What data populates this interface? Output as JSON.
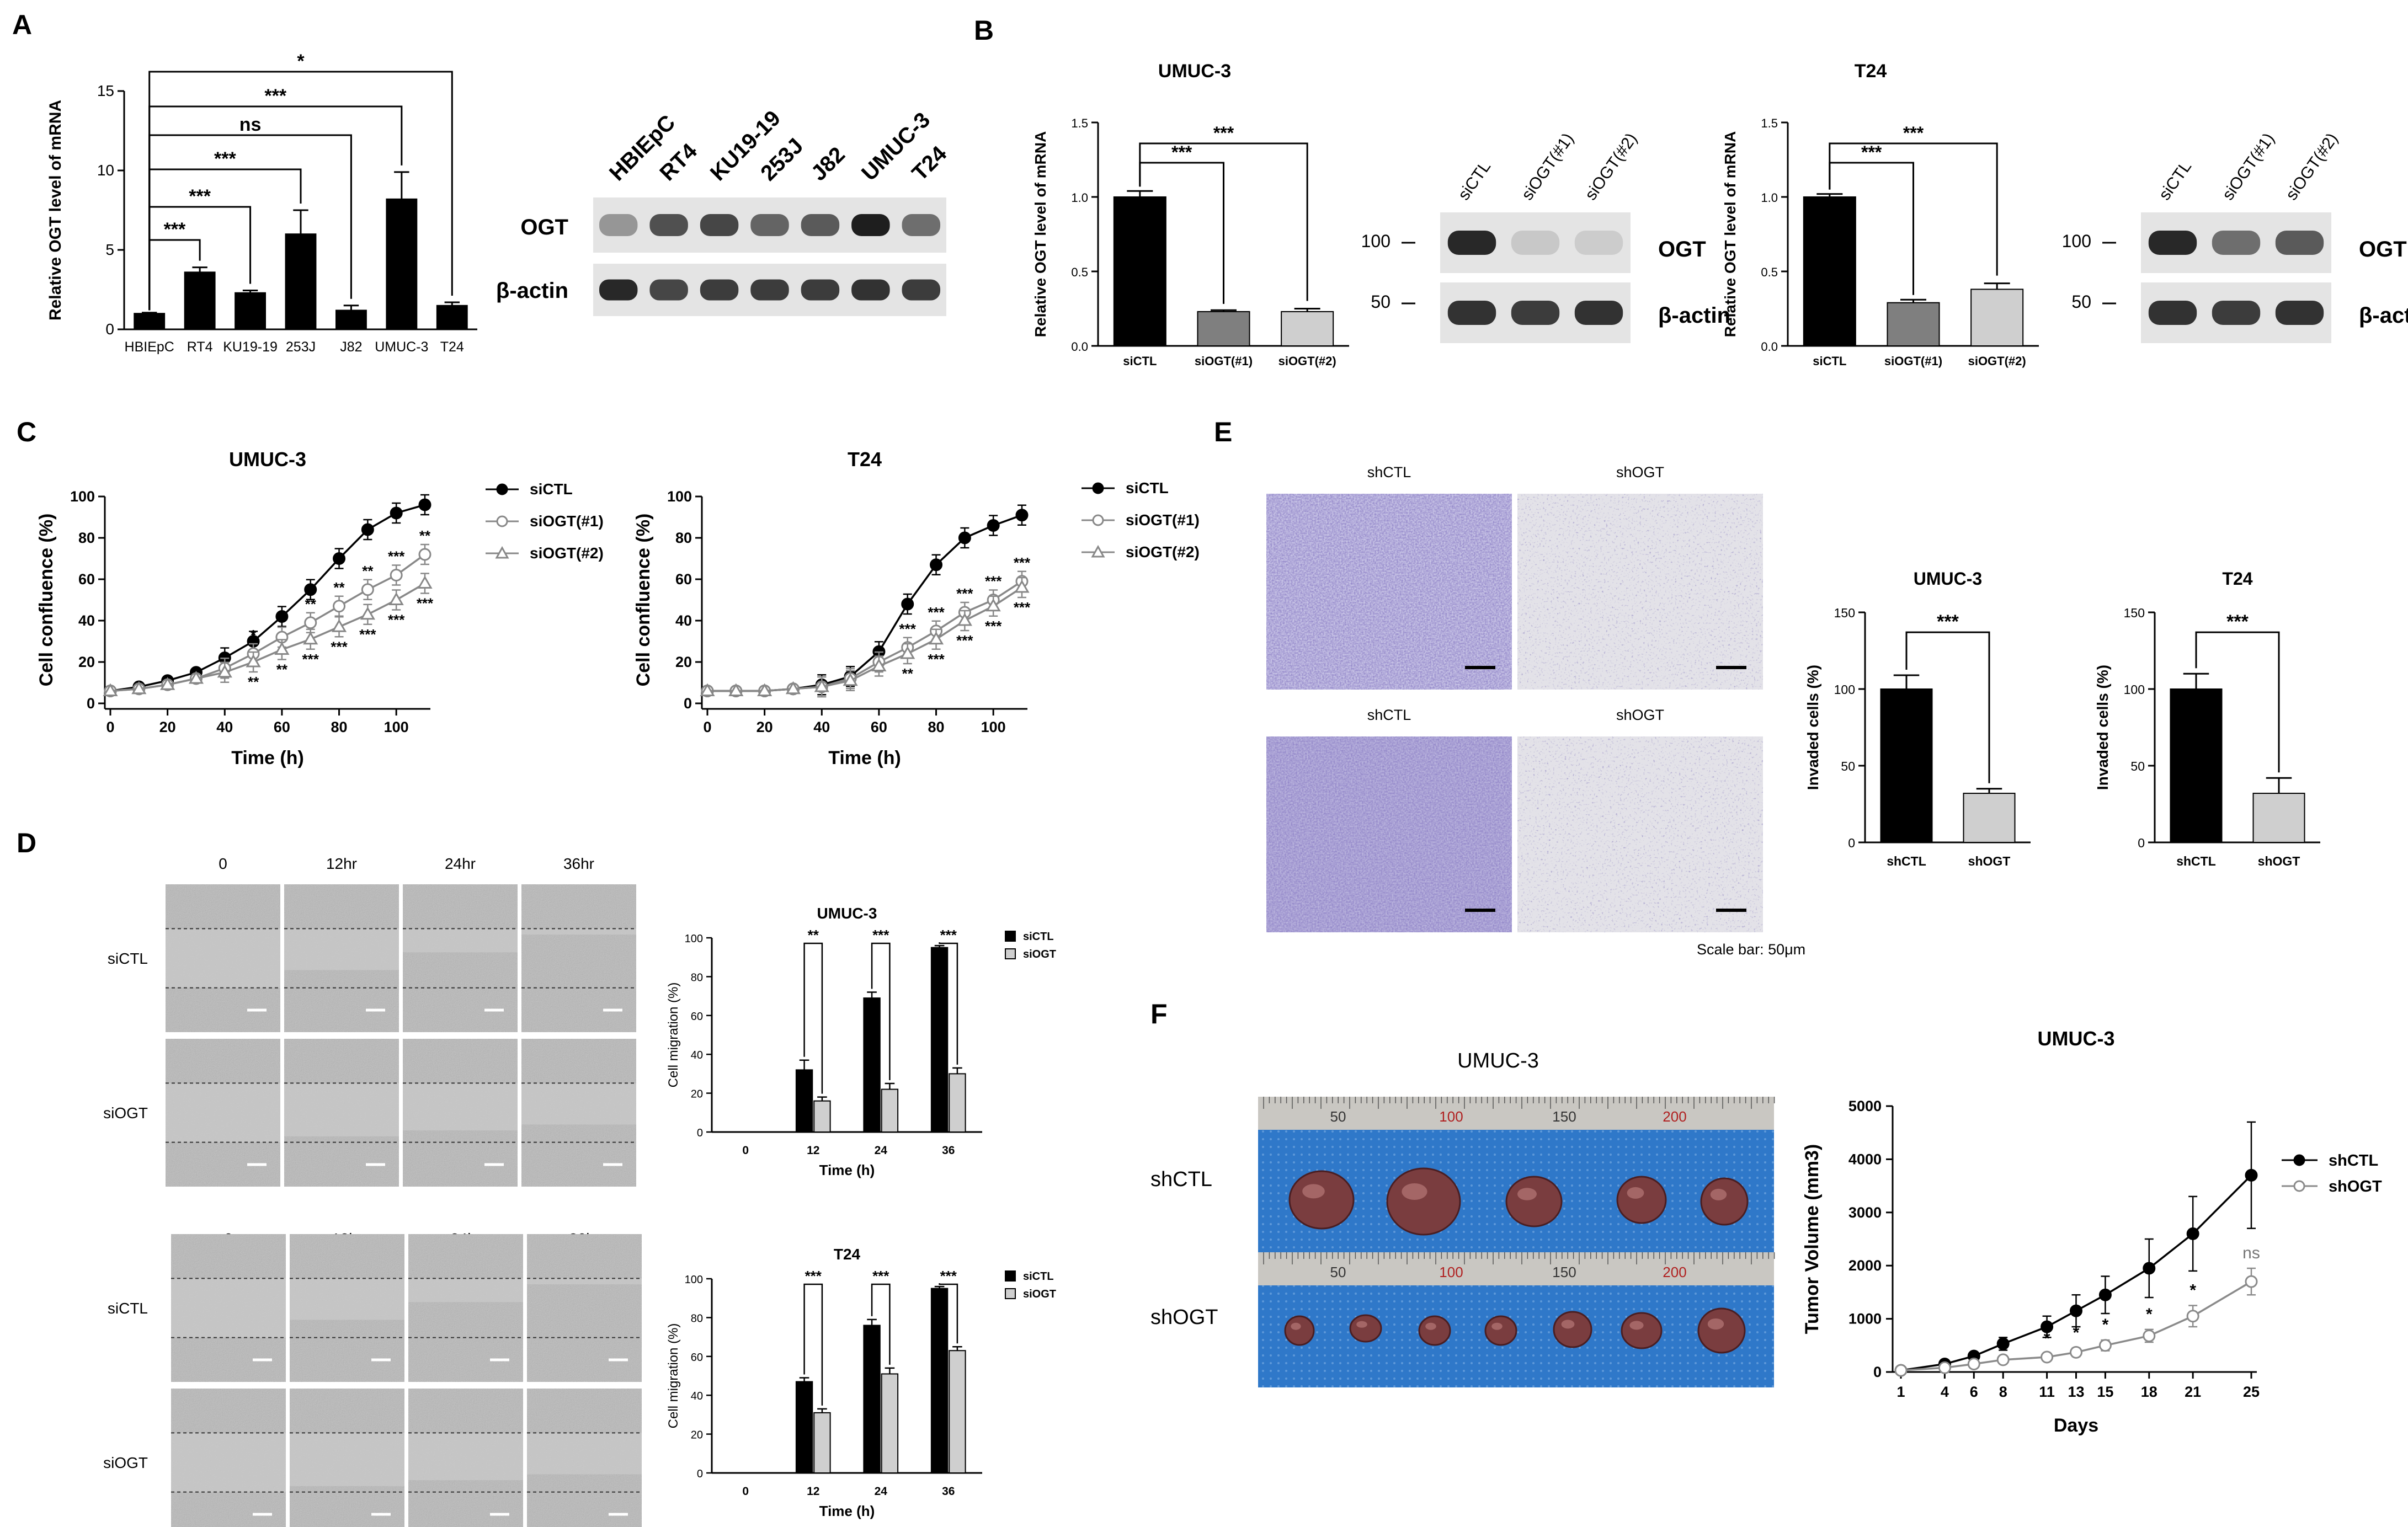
{
  "panel_letters": [
    "A",
    "B",
    "C",
    "D",
    "E",
    "F"
  ],
  "colors": {
    "black": "#000000",
    "gray": "#7f7f7f",
    "light": "#cfcfcf",
    "blot": "#1e1e1e",
    "membrane": "#dedede",
    "blue_mat": "#2f78c9"
  },
  "panelA": {
    "chart_data": {
      "type": "bar",
      "categories": [
        "HBIEpC",
        "RT4",
        "KU19-19",
        "253J",
        "J82",
        "UMUC-3",
        "T24"
      ],
      "values": [
        1.0,
        3.6,
        2.3,
        6.0,
        1.2,
        8.2,
        1.5
      ],
      "errors": [
        0.05,
        0.3,
        0.15,
        1.5,
        0.3,
        1.7,
        0.2
      ],
      "ylabel": "Relative OGT level of mRNA",
      "ylim": [
        0,
        15
      ],
      "yticks": [
        "0",
        "5",
        "10",
        "15"
      ],
      "significance": [
        "***",
        "***",
        "***",
        "ns",
        "***",
        "*"
      ]
    },
    "blot": {
      "lanes": [
        "HBIEpC",
        "RT4",
        "KU19-19",
        "253J",
        "J82",
        "UMUC-3",
        "T24"
      ],
      "rows": [
        "OGT",
        "β-actin"
      ],
      "ogt_intensity": [
        0.35,
        0.7,
        0.75,
        0.6,
        0.65,
        0.95,
        0.55
      ],
      "actin_intensity": [
        0.9,
        0.75,
        0.8,
        0.8,
        0.8,
        0.85,
        0.8
      ]
    }
  },
  "panelB": {
    "umuc": {
      "title": "UMUC-3",
      "chart_data": {
        "type": "bar",
        "categories": [
          "siCTL",
          "siOGT(#1)",
          "siOGT(#2)"
        ],
        "values": [
          1.0,
          0.23,
          0.23
        ],
        "errors": [
          0.04,
          0.01,
          0.02
        ],
        "ylabel": "Relative OGT level of mRNA",
        "ylim": [
          0,
          1.5
        ],
        "yticks": [
          "0.0",
          "0.5",
          "1.0",
          "1.5"
        ],
        "significance": [
          "***",
          "***"
        ]
      },
      "blot": {
        "lanes": [
          "siCTL",
          "siOGT(#1)",
          "siOGT(#2)"
        ],
        "rows": [
          "OGT",
          "β-actin"
        ],
        "markers": [
          "100",
          "50"
        ],
        "ogt_intensity": [
          0.9,
          0.1,
          0.08
        ],
        "actin_intensity": [
          0.85,
          0.8,
          0.85
        ]
      }
    },
    "t24": {
      "title": "T24",
      "chart_data": {
        "type": "bar",
        "categories": [
          "siCTL",
          "siOGT(#1)",
          "siOGT(#2)"
        ],
        "values": [
          1.0,
          0.29,
          0.38
        ],
        "errors": [
          0.02,
          0.02,
          0.04
        ],
        "ylabel": "Relative OGT level of mRNA",
        "ylim": [
          0,
          1.5
        ],
        "yticks": [
          "0.0",
          "0.5",
          "1.0",
          "1.5"
        ],
        "significance": [
          "***",
          "***"
        ]
      },
      "blot": {
        "lanes": [
          "siCTL",
          "siOGT(#1)",
          "siOGT(#2)"
        ],
        "rows": [
          "OGT",
          "β-actin"
        ],
        "markers": [
          "100",
          "50"
        ],
        "ogt_intensity": [
          0.9,
          0.55,
          0.65
        ],
        "actin_intensity": [
          0.85,
          0.8,
          0.85
        ]
      }
    }
  },
  "panelC": {
    "legend": [
      "siCTL",
      "siOGT(#1)",
      "siOGT(#2)"
    ],
    "umuc": {
      "chart_data": {
        "type": "line",
        "title": "UMUC-3",
        "xlabel": "Time (h)",
        "ylabel": "Cell confluence (%)",
        "xlim": [
          0,
          110
        ],
        "ylim": [
          0,
          100
        ],
        "xticks": [
          "0",
          "20",
          "40",
          "60",
          "80",
          "100"
        ],
        "yticks": [
          "0",
          "20",
          "40",
          "60",
          "80",
          "100"
        ],
        "x": [
          0,
          10,
          20,
          30,
          40,
          50,
          60,
          70,
          80,
          90,
          100,
          110
        ],
        "series": [
          {
            "name": "siCTL",
            "values": [
              6,
              8,
              11,
              15,
              22,
              30,
              42,
              55,
              70,
              84,
              92,
              96
            ]
          },
          {
            "name": "siOGT(#1)",
            "values": [
              6,
              7,
              9,
              12,
              17,
              24,
              32,
              39,
              47,
              55,
              62,
              72
            ]
          },
          {
            "name": "siOGT(#2)",
            "values": [
              6,
              7,
              9,
              12,
              15,
              20,
              26,
              31,
              37,
              43,
              50,
              58
            ]
          }
        ],
        "annotations_upper": [
          {
            "x": 50,
            "label": "*"
          },
          {
            "x": 60,
            "label": "**"
          },
          {
            "x": 70,
            "label": "**"
          },
          {
            "x": 80,
            "label": "**"
          },
          {
            "x": 90,
            "label": "**"
          },
          {
            "x": 100,
            "label": "***"
          },
          {
            "x": 110,
            "label": "**"
          }
        ],
        "annotations_lower": [
          {
            "x": 50,
            "label": "**"
          },
          {
            "x": 60,
            "label": "**"
          },
          {
            "x": 70,
            "label": "***"
          },
          {
            "x": 80,
            "label": "***"
          },
          {
            "x": 90,
            "label": "***"
          },
          {
            "x": 100,
            "label": "***"
          },
          {
            "x": 110,
            "label": "***"
          }
        ]
      }
    },
    "t24": {
      "chart_data": {
        "type": "line",
        "title": "T24",
        "xlabel": "Time (h)",
        "ylabel": "Cell confluence (%)",
        "xlim": [
          0,
          110
        ],
        "ylim": [
          0,
          100
        ],
        "xticks": [
          "0",
          "20",
          "40",
          "60",
          "80",
          "100"
        ],
        "yticks": [
          "0",
          "20",
          "40",
          "60",
          "80",
          "100"
        ],
        "x": [
          0,
          10,
          20,
          30,
          40,
          50,
          60,
          70,
          80,
          90,
          100,
          110
        ],
        "series": [
          {
            "name": "siCTL",
            "values": [
              6,
              6,
              6,
              7,
              9,
              13,
              25,
              48,
              67,
              80,
              86,
              91
            ]
          },
          {
            "name": "siOGT(#1)",
            "values": [
              6,
              6,
              6,
              7,
              8,
              12,
              20,
              27,
              35,
              44,
              50,
              59
            ]
          },
          {
            "name": "siOGT(#2)",
            "values": [
              6,
              6,
              6,
              7,
              8,
              11,
              18,
              24,
              31,
              40,
              47,
              56
            ]
          }
        ],
        "annotations_upper": [
          {
            "x": 70,
            "label": "***"
          },
          {
            "x": 80,
            "label": "***"
          },
          {
            "x": 90,
            "label": "***"
          },
          {
            "x": 100,
            "label": "***"
          },
          {
            "x": 110,
            "label": "***"
          }
        ],
        "annotations_lower": [
          {
            "x": 70,
            "label": "**"
          },
          {
            "x": 80,
            "label": "***"
          },
          {
            "x": 90,
            "label": "***"
          },
          {
            "x": 100,
            "label": "***"
          },
          {
            "x": 110,
            "label": "***"
          }
        ]
      }
    }
  },
  "panelD": {
    "times": [
      "0",
      "12hr",
      "24hr",
      "36hr"
    ],
    "rows": [
      "siCTL",
      "siOGT"
    ],
    "legend": [
      "siCTL",
      "siOGT"
    ],
    "umuc": {
      "chart_data": {
        "type": "bar",
        "title": "UMUC-3",
        "xlabel": "Time (h)",
        "ylabel": "Cell migration (%)",
        "categories": [
          "0",
          "12",
          "24",
          "36"
        ],
        "ylim": [
          0,
          100
        ],
        "yticks": [
          "0",
          "20",
          "40",
          "60",
          "80",
          "100"
        ],
        "series": [
          {
            "name": "siCTL",
            "values": [
              0,
              32,
              69,
              95
            ],
            "errors": [
              0,
              5,
              3,
              1
            ]
          },
          {
            "name": "siOGT",
            "values": [
              0,
              16,
              22,
              30
            ],
            "errors": [
              0,
              2,
              3,
              3
            ]
          }
        ],
        "significance": [
          "",
          "**",
          "***",
          "***"
        ]
      }
    },
    "t24": {
      "chart_data": {
        "type": "bar",
        "title": "T24",
        "xlabel": "Time (h)",
        "ylabel": "Cell migration (%)",
        "categories": [
          "0",
          "12",
          "24",
          "36"
        ],
        "ylim": [
          0,
          100
        ],
        "yticks": [
          "0",
          "20",
          "40",
          "60",
          "80",
          "100"
        ],
        "series": [
          {
            "name": "siCTL",
            "values": [
              0,
              47,
              76,
              95
            ],
            "errors": [
              0,
              2,
              3,
              1
            ]
          },
          {
            "name": "siOGT",
            "values": [
              0,
              31,
              51,
              63
            ],
            "errors": [
              0,
              2,
              3,
              2
            ]
          }
        ],
        "significance": [
          "",
          "***",
          "***",
          "***"
        ]
      }
    }
  },
  "panelE": {
    "image_labels": [
      "shCTL",
      "shOGT",
      "shCTL",
      "shOGT"
    ],
    "scale_bar": "Scale bar: 50μm",
    "umuc": {
      "chart_data": {
        "type": "bar",
        "title": "UMUC-3",
        "ylabel": "Invaded cells (%)",
        "categories": [
          "shCTL",
          "shOGT"
        ],
        "values": [
          100,
          32
        ],
        "errors": [
          9,
          3
        ],
        "ylim": [
          0,
          150
        ],
        "yticks": [
          "0",
          "50",
          "100",
          "150"
        ],
        "significance": "***"
      }
    },
    "t24": {
      "chart_data": {
        "type": "bar",
        "title": "T24",
        "ylabel": "Invaded cells (%)",
        "categories": [
          "shCTL",
          "shOGT"
        ],
        "values": [
          100,
          32
        ],
        "errors": [
          10,
          10
        ],
        "ylim": [
          0,
          150
        ],
        "yticks": [
          "0",
          "50",
          "100",
          "150"
        ],
        "significance": "***"
      }
    }
  },
  "panelF": {
    "photo_title": "UMUC-3",
    "photo_rows": [
      "shCTL",
      "shOGT"
    ],
    "ruler_labels": [
      "50",
      "100",
      "150",
      "200"
    ],
    "chart_data": {
      "type": "line",
      "title": "UMUC-3",
      "xlabel": "Days",
      "ylabel": "Tumor Volume (mm3)",
      "x": [
        "1",
        "4",
        "6",
        "8",
        "11",
        "13",
        "15",
        "18",
        "21",
        "25"
      ],
      "ylim": [
        0,
        5000
      ],
      "yticks": [
        "0",
        "1000",
        "2000",
        "3000",
        "4000",
        "5000"
      ],
      "series": [
        {
          "name": "shCTL",
          "values": [
            30,
            150,
            300,
            530,
            850,
            1150,
            1450,
            1950,
            2600,
            3700
          ],
          "errors": [
            10,
            30,
            60,
            120,
            200,
            300,
            350,
            550,
            700,
            1000
          ]
        },
        {
          "name": "shOGT",
          "values": [
            30,
            80,
            150,
            230,
            280,
            370,
            500,
            680,
            1050,
            1700
          ],
          "errors": [
            10,
            20,
            30,
            50,
            60,
            80,
            100,
            120,
            200,
            250
          ]
        }
      ],
      "significance": [
        {
          "x": "11",
          "label": "*"
        },
        {
          "x": "13",
          "label": "*"
        },
        {
          "x": "15",
          "label": "*"
        },
        {
          "x": "18",
          "label": "*"
        },
        {
          "x": "21",
          "label": "*"
        },
        {
          "x": "25",
          "label": "ns"
        }
      ]
    }
  }
}
